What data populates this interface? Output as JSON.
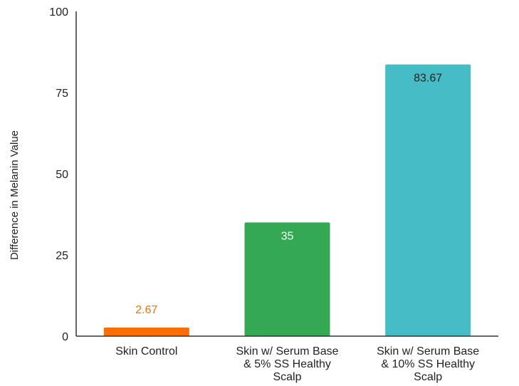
{
  "chart_data": {
    "type": "bar",
    "ylabel": "Difference in Melanin Value",
    "xlabel": "",
    "ylim": [
      0,
      100
    ],
    "yticks": [
      "0",
      "25",
      "50",
      "75",
      "100"
    ],
    "grid": false,
    "categories": [
      [
        "Skin Control"
      ],
      [
        "Skin w/ Serum Base",
        "& 5% SS Healthy",
        "Scalp"
      ],
      [
        "Skin w/ Serum Base",
        "& 10% SS Healthy",
        "Scalp"
      ]
    ],
    "values": [
      2.67,
      35,
      83.67
    ],
    "data_labels": [
      "2.67",
      "35",
      "83.67"
    ],
    "colors": [
      "#ff6d01",
      "#34a853",
      "#46bdc6"
    ],
    "label_colors": [
      "#ff6d01",
      "#ffffff",
      "#222222"
    ]
  }
}
